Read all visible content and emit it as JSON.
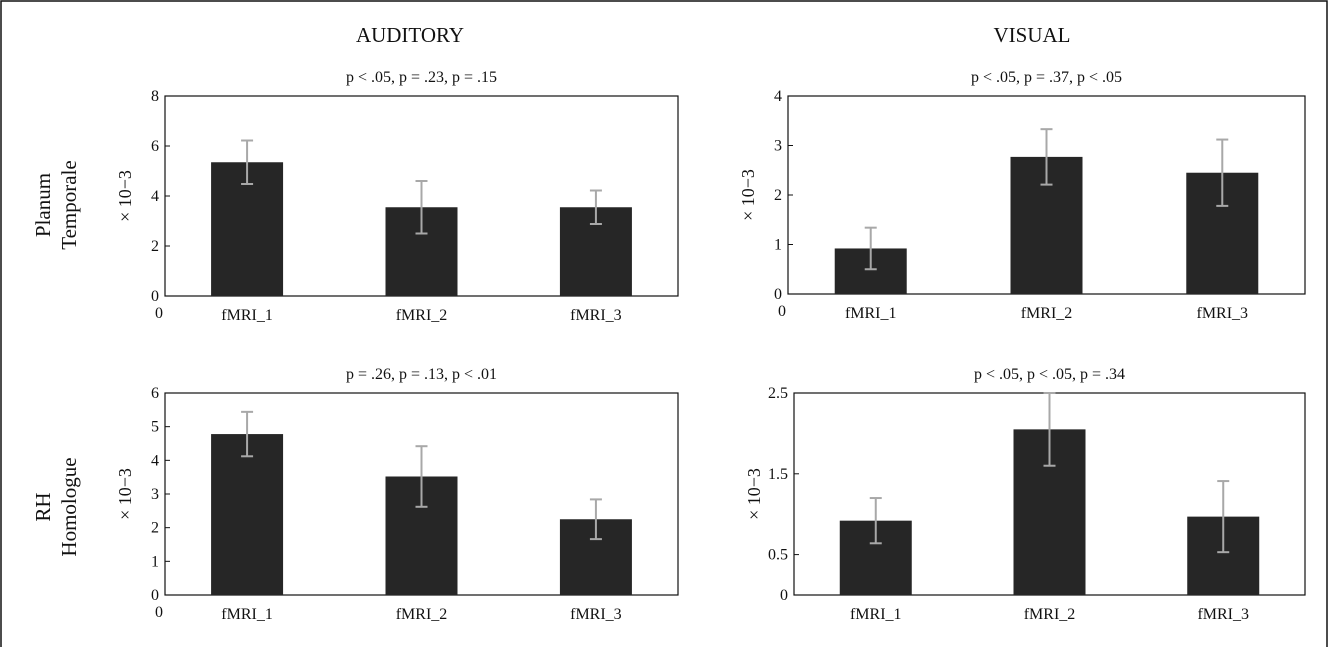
{
  "column_titles": [
    "AUDITORY",
    "VISUAL"
  ],
  "row_labels": [
    [
      "Planum",
      "Temporale"
    ],
    [
      "RH",
      "Homologue"
    ]
  ],
  "chart_data": [
    {
      "type": "bar",
      "panel": "top-left",
      "title": "p < .05, p = .23, p = .15",
      "ylabel": "× 10−3",
      "categories": [
        "fMRI_1",
        "fMRI_2",
        "fMRI_3"
      ],
      "values": [
        5.35,
        3.55,
        3.55
      ],
      "errors": [
        0.87,
        1.05,
        0.67
      ],
      "ylim": [
        0,
        8
      ],
      "yticks": [
        0,
        2,
        4,
        6,
        8
      ],
      "ytick_labels": [
        "0",
        "2",
        "4",
        "6",
        "8"
      ],
      "origin_label": "0"
    },
    {
      "type": "bar",
      "panel": "top-right",
      "title": "p < .05, p = .37, p < .05",
      "ylabel": "× 10−3",
      "categories": [
        "fMRI_1",
        "fMRI_2",
        "fMRI_3"
      ],
      "values": [
        0.92,
        2.77,
        2.45
      ],
      "errors": [
        0.42,
        0.56,
        0.67
      ],
      "ylim": [
        0,
        4
      ],
      "yticks": [
        0,
        1,
        2,
        3,
        4
      ],
      "ytick_labels": [
        "0",
        "1",
        "2",
        "3",
        "4"
      ],
      "origin_label": "0"
    },
    {
      "type": "bar",
      "panel": "bottom-left",
      "title": "p = .26, p = .13, p < .01",
      "ylabel": "× 10−3",
      "categories": [
        "fMRI_1",
        "fMRI_2",
        "fMRI_3"
      ],
      "values": [
        4.78,
        3.52,
        2.25
      ],
      "errors": [
        0.66,
        0.9,
        0.59
      ],
      "ylim": [
        0,
        6
      ],
      "yticks": [
        0,
        1,
        2,
        3,
        4,
        5,
        6
      ],
      "ytick_labels": [
        "0",
        "1",
        "2",
        "3",
        "4",
        "5",
        "6"
      ],
      "origin_label": "0"
    },
    {
      "type": "bar",
      "panel": "bottom-right",
      "title": "p < .05, p < .05, p = .34",
      "ylabel": "× 10−3",
      "categories": [
        "fMRI_1",
        "fMRI_2",
        "fMRI_3"
      ],
      "values": [
        0.92,
        2.05,
        0.97
      ],
      "errors": [
        0.28,
        0.45,
        0.44
      ],
      "ylim": [
        0,
        2.5
      ],
      "yticks": [
        0,
        0.5,
        1.5,
        2.5
      ],
      "ytick_labels": [
        "0",
        "0.5",
        "1.5",
        "2.5"
      ],
      "origin_label": ""
    }
  ]
}
